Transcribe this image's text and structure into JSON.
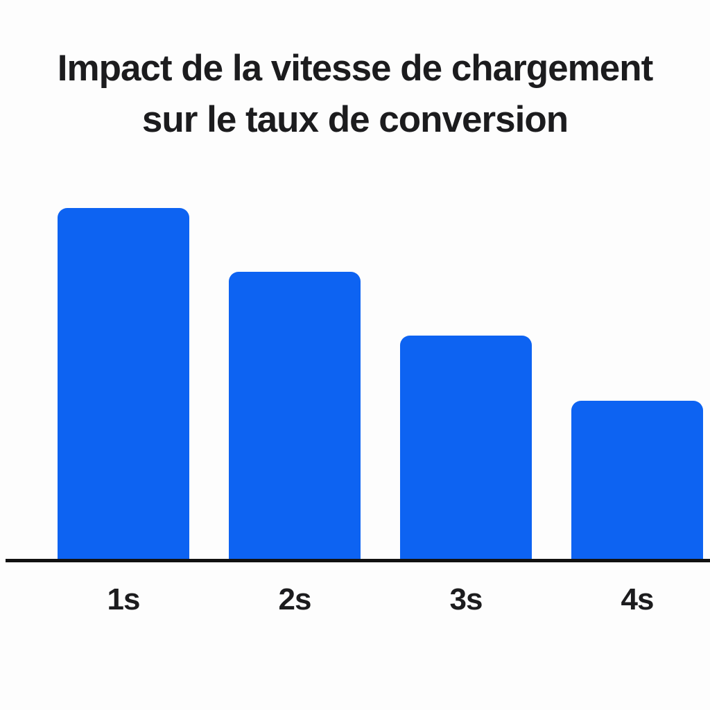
{
  "title": {
    "lines": [
      "Impact de la vitesse de chargement",
      "sur le taux de conversion"
    ],
    "color": "#1c1c1e"
  },
  "chart_data": {
    "type": "bar",
    "title": "Impact de la vitesse de chargement sur le taux de conversion",
    "categories": [
      "1s",
      "2s",
      "3s",
      "4s"
    ],
    "values": [
      100,
      82,
      64,
      45.5
    ],
    "values_note": "No y-axis or data labels shown; values are relative bar heights with tallest bar = 100",
    "xlabel": "",
    "ylabel": "",
    "ylim": [
      0,
      100
    ],
    "grid": false,
    "legend": false,
    "bar_color": "#0D63F2",
    "axis_color": "#111111",
    "background_color": "#fdfdfd",
    "text_color": "#1c1c1e"
  }
}
